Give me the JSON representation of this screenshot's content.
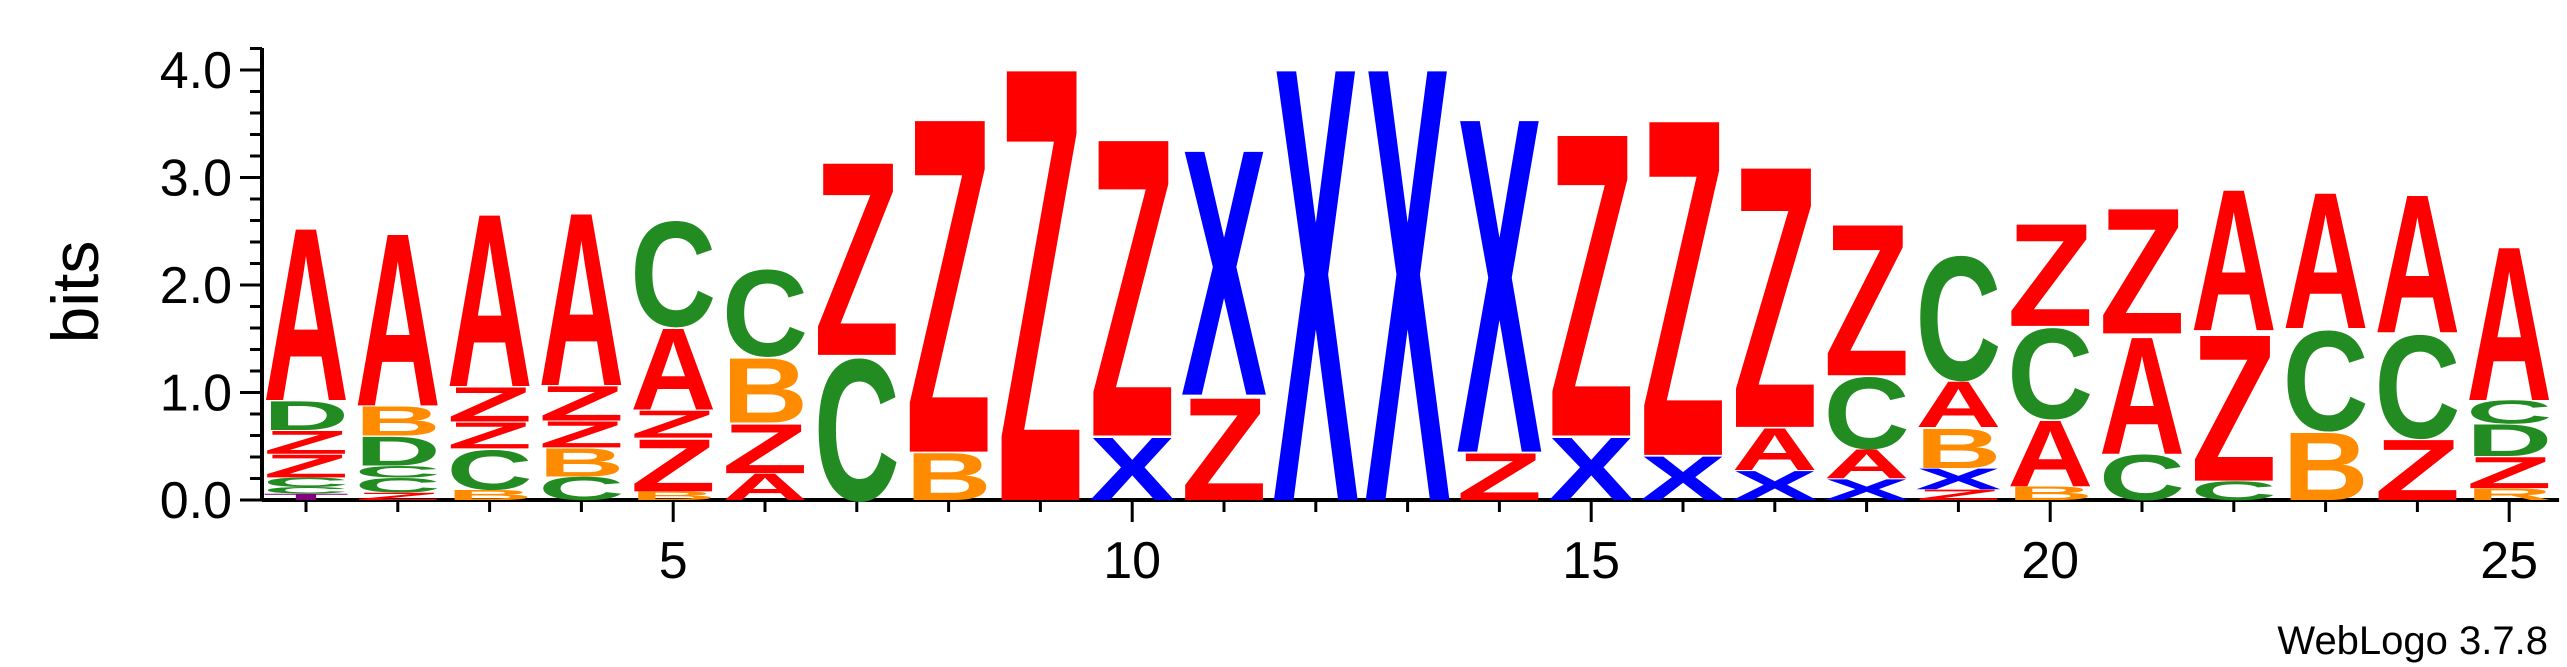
{
  "chart_data": {
    "type": "sequence_logo",
    "ylabel": "bits",
    "ylim": [
      0,
      4.2
    ],
    "y_ticks": [
      "0.0",
      "1.0",
      "2.0",
      "3.0",
      "4.0"
    ],
    "x_ticks": [
      "5",
      "10",
      "15",
      "20",
      "25"
    ],
    "x_tick_positions": [
      5,
      10,
      15,
      20,
      25
    ],
    "footer": "WebLogo 3.7.8",
    "colors": {
      "A": "#ff0000",
      "Z": "#ff0000",
      "C": "#228b22",
      "D": "#228b22",
      "B": "#ff8c00",
      "X": "#0000ff",
      "R": "#ff8c00",
      "T": "#800080"
    },
    "positions": [
      {
        "pos": 1,
        "stack": [
          [
            "T",
            0.06
          ],
          [
            "C",
            0.06
          ],
          [
            "C",
            0.09
          ],
          [
            "Z",
            0.22
          ],
          [
            "Z",
            0.22
          ],
          [
            "D",
            0.28
          ],
          [
            "A",
            1.65
          ]
        ]
      },
      {
        "pos": 2,
        "stack": [
          [
            "Z",
            0.07
          ],
          [
            "C",
            0.14
          ],
          [
            "C",
            0.11
          ],
          [
            "D",
            0.28
          ],
          [
            "B",
            0.28
          ],
          [
            "A",
            1.65
          ]
        ]
      },
      {
        "pos": 3,
        "stack": [
          [
            "B",
            0.1
          ],
          [
            "C",
            0.38
          ],
          [
            "Z",
            0.25
          ],
          [
            "Z",
            0.33
          ],
          [
            "A",
            1.65
          ]
        ]
      },
      {
        "pos": 4,
        "stack": [
          [
            "C",
            0.22
          ],
          [
            "B",
            0.27
          ],
          [
            "Z",
            0.25
          ],
          [
            "Z",
            0.33
          ],
          [
            "A",
            1.65
          ]
        ]
      },
      {
        "pos": 5,
        "stack": [
          [
            "B",
            0.08
          ],
          [
            "Z",
            0.5
          ],
          [
            "Z",
            0.26
          ],
          [
            "A",
            0.78
          ],
          [
            "C",
            1.0
          ]
        ]
      },
      {
        "pos": 6,
        "stack": [
          [
            "A",
            0.25
          ],
          [
            "Z",
            0.47
          ],
          [
            "B",
            0.62
          ],
          [
            "C",
            0.82
          ]
        ]
      },
      {
        "pos": 7,
        "stack": [
          [
            "C",
            1.35
          ],
          [
            "Z",
            1.85
          ]
        ]
      },
      {
        "pos": 8,
        "stack": [
          [
            "B",
            0.45
          ],
          [
            "Z",
            3.2
          ]
        ]
      },
      {
        "pos": 9,
        "stack": [
          [
            "Z",
            4.15
          ]
        ]
      },
      {
        "pos": 10,
        "stack": [
          [
            "X",
            0.6
          ],
          [
            "Z",
            2.85
          ]
        ]
      },
      {
        "pos": 11,
        "stack": [
          [
            "Z",
            0.98
          ],
          [
            "X",
            2.35
          ]
        ]
      },
      {
        "pos": 12,
        "stack": [
          [
            "X",
            4.15
          ]
        ]
      },
      {
        "pos": 13,
        "stack": [
          [
            "X",
            4.15
          ]
        ]
      },
      {
        "pos": 14,
        "stack": [
          [
            "Z",
            0.45
          ],
          [
            "X",
            3.2
          ]
        ]
      },
      {
        "pos": 15,
        "stack": [
          [
            "X",
            0.6
          ],
          [
            "Z",
            2.9
          ]
        ]
      },
      {
        "pos": 16,
        "stack": [
          [
            "X",
            0.42
          ],
          [
            "Z",
            3.22
          ]
        ]
      },
      {
        "pos": 17,
        "stack": [
          [
            "X",
            0.28
          ],
          [
            "A",
            0.4
          ],
          [
            "Z",
            2.5
          ]
        ]
      },
      {
        "pos": 18,
        "stack": [
          [
            "X",
            0.2
          ],
          [
            "A",
            0.28
          ],
          [
            "C",
            0.68
          ],
          [
            "Z",
            1.45
          ]
        ]
      },
      {
        "pos": 19,
        "stack": [
          [
            "Z",
            0.1
          ],
          [
            "X",
            0.2
          ],
          [
            "B",
            0.38
          ],
          [
            "A",
            0.44
          ],
          [
            "C",
            1.18
          ]
        ]
      },
      {
        "pos": 20,
        "stack": [
          [
            "B",
            0.13
          ],
          [
            "A",
            0.63
          ],
          [
            "C",
            0.86
          ],
          [
            "Z",
            0.98
          ]
        ]
      },
      {
        "pos": 21,
        "stack": [
          [
            "C",
            0.43
          ],
          [
            "A",
            1.12
          ],
          [
            "Z",
            1.2
          ]
        ]
      },
      {
        "pos": 22,
        "stack": [
          [
            "C",
            0.18
          ],
          [
            "Z",
            1.4
          ],
          [
            "A",
            1.35
          ]
        ]
      },
      {
        "pos": 23,
        "stack": [
          [
            "B",
            0.65
          ],
          [
            "C",
            0.95
          ],
          [
            "A",
            1.3
          ]
        ]
      },
      {
        "pos": 24,
        "stack": [
          [
            "Z",
            0.58
          ],
          [
            "C",
            0.98
          ],
          [
            "A",
            1.32
          ]
        ]
      },
      {
        "pos": 25,
        "stack": [
          [
            "R",
            0.11
          ],
          [
            "Z",
            0.3
          ],
          [
            "D",
            0.3
          ],
          [
            "C",
            0.22
          ],
          [
            "A",
            1.47
          ]
        ]
      }
    ]
  }
}
